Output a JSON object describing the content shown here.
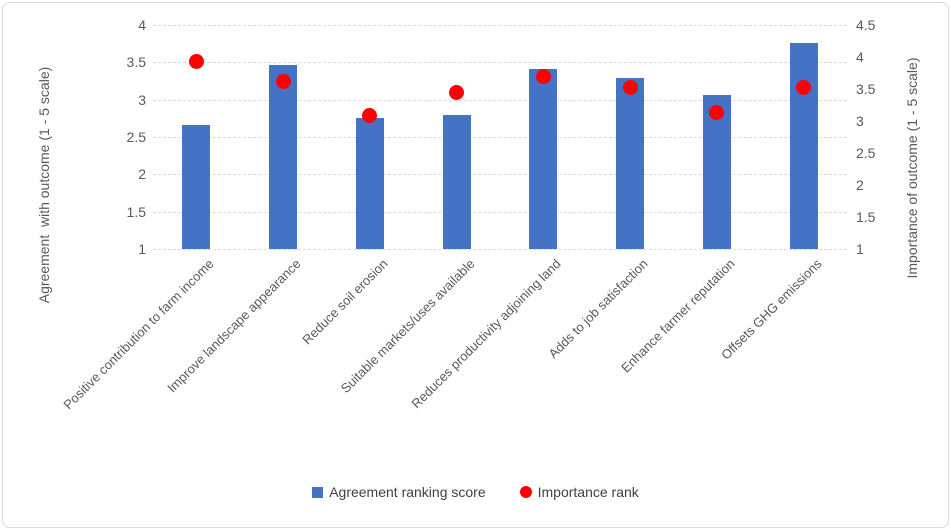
{
  "chart_data": {
    "type": "combo",
    "categories": [
      "Positive contribution to farm income",
      "Improve landscape appearance",
      "Reduce soil erosion",
      "Suitable markets/uses available",
      "Reduces productivity adjoining land",
      "Adds to job satisfaction",
      "Enhance farmer reputation",
      "Offsets GHG emissions"
    ],
    "series": [
      {
        "name": "Agreement ranking score",
        "type": "bar",
        "axis": "left",
        "color": "#4472C4",
        "values": [
          2.66,
          3.47,
          2.75,
          2.79,
          3.41,
          3.29,
          3.06,
          3.76
        ]
      },
      {
        "name": "Importance rank",
        "type": "scatter",
        "axis": "right",
        "color": "#FF0000",
        "values": [
          3.93,
          3.62,
          3.08,
          3.45,
          3.7,
          3.53,
          3.13,
          3.52
        ]
      }
    ],
    "left_axis": {
      "title": "Agreement  with outcome (1 - 5 scale)",
      "min": 1,
      "max": 4,
      "step": 0.5,
      "tick_labels": [
        "4",
        "3.5",
        "3",
        "2.5",
        "2",
        "1.5",
        "1"
      ]
    },
    "right_axis": {
      "title": "Importance of outcome (1 - 5 scale)",
      "min": 1,
      "max": 4.5,
      "step": 0.5,
      "tick_labels": [
        "4.5",
        "4",
        "3.5",
        "3",
        "2.5",
        "2",
        "1.5",
        "1"
      ]
    },
    "legend": {
      "position": "bottom",
      "items": [
        "Agreement ranking score",
        "Importance rank"
      ]
    },
    "grid": true,
    "styles": {
      "bar_color": "#4472C4",
      "point_color": "#FF0000",
      "text_color": "#595959",
      "gridline_color": "#D9D9D9",
      "border_color": "#D9D9D9"
    }
  }
}
